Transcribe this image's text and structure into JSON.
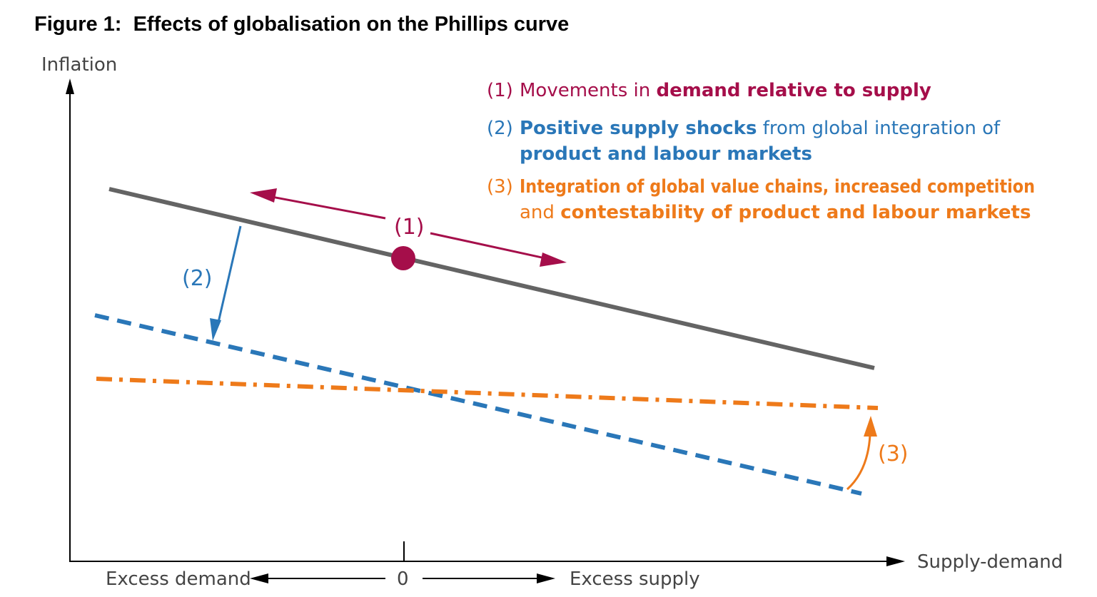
{
  "title": "Figure 1:  Effects of globalisation on the Phillips curve",
  "axes": {
    "y_label": "Inflation",
    "x_label": "Supply-demand",
    "left_label": "Excess demand",
    "zero_label": "0",
    "right_label": "Excess supply"
  },
  "markers": {
    "m1": "(1)",
    "m2": "(2)",
    "m3": "(3)"
  },
  "legend": {
    "item1": {
      "num": "(1)",
      "pre": "Movements in ",
      "bold": "demand relative to supply"
    },
    "item2": {
      "num": "(2)",
      "bold1": "Positive supply shocks",
      "mid": " from global integration of",
      "bold2": "product and labour markets"
    },
    "item3": {
      "num": "(3)",
      "bold1": "Integration of global value chains, increased competition",
      "mid": "and ",
      "bold2": "contestability of product and labour markets"
    }
  },
  "colors": {
    "curve": "#646464",
    "demand": "#a50e4a",
    "supply": "#2a77b8",
    "competition": "#ee7a1a",
    "axis": "#000000"
  }
}
